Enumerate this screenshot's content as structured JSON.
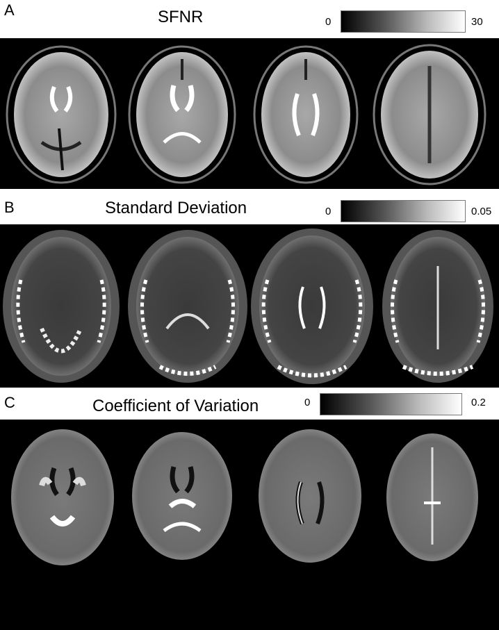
{
  "panels": [
    {
      "letter": "A",
      "title": "SFNR",
      "colorbar": {
        "min": "0",
        "max": "30"
      },
      "slices": [
        "brain-slice-1",
        "brain-slice-2",
        "brain-slice-3",
        "brain-slice-4"
      ]
    },
    {
      "letter": "B",
      "title": "Standard Deviation",
      "colorbar": {
        "min": "0",
        "max": "0.05"
      },
      "slices": [
        "brain-slice-1",
        "brain-slice-2",
        "brain-slice-3",
        "brain-slice-4"
      ]
    },
    {
      "letter": "C",
      "title": "Coefficient of Variation",
      "colorbar": {
        "min": "0",
        "max": "0.2"
      },
      "slices": [
        "brain-slice-1",
        "brain-slice-2",
        "brain-slice-3",
        "brain-slice-4"
      ]
    }
  ],
  "colors": {
    "background": "#000000",
    "colorbar_low": "#000000",
    "colorbar_high": "#ffffff"
  }
}
